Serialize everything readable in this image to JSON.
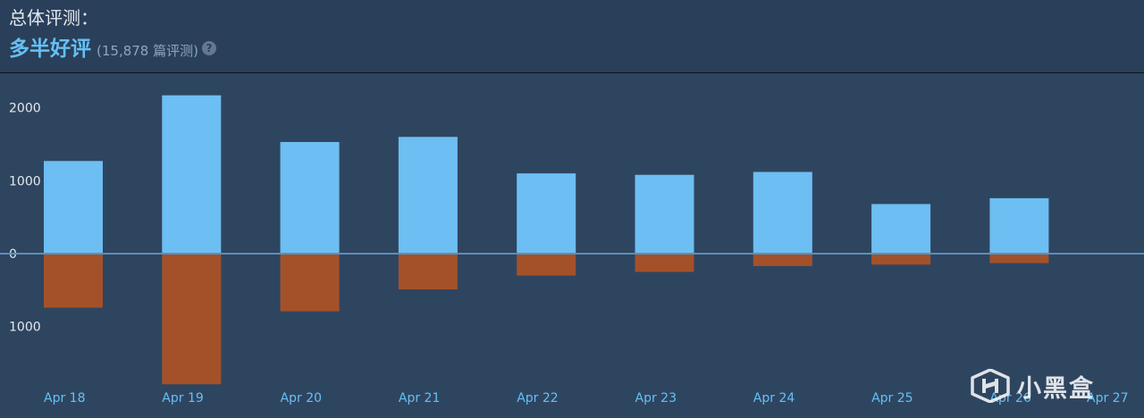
{
  "header": {
    "title": "总体评测：",
    "summary": "多半好评",
    "count": "(15,878 篇评测)",
    "help": "?"
  },
  "watermark": {
    "text": "小黑盒"
  },
  "colors": {
    "positive": "#6dbef2",
    "negative": "#a4512a",
    "zero_line": "#5d8eb7",
    "axis_text": "#e4e9ef",
    "date_text": "#66c0f4"
  },
  "chart_data": {
    "type": "bar",
    "categories": [
      "Apr 18",
      "Apr 19",
      "Apr 20",
      "Apr 21",
      "Apr 22",
      "Apr 23",
      "Apr 24",
      "Apr 25",
      "Apr 26",
      "Apr 27"
    ],
    "series": [
      {
        "values": [
          1270,
          2170,
          1530,
          1600,
          1100,
          1080,
          1120,
          680,
          760,
          0
        ]
      },
      {
        "values": [
          -740,
          -1790,
          -790,
          -490,
          -300,
          -250,
          -170,
          -150,
          -130,
          0
        ]
      }
    ],
    "yticks": [
      {
        "value": 2000,
        "label": "2000"
      },
      {
        "value": 1000,
        "label": "1000"
      },
      {
        "value": 0,
        "label": "0"
      },
      {
        "value": -1000,
        "label": "1000"
      }
    ],
    "ylim": [
      -1800,
      2200
    ],
    "grid": false,
    "legend": "none"
  }
}
